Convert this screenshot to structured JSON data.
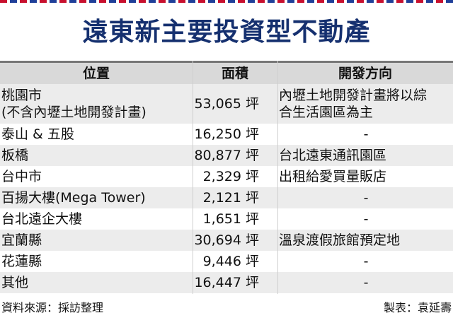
{
  "title": "遠東新主要投資型不動產",
  "table": {
    "headers": [
      "位置",
      "面積",
      "開發方向"
    ],
    "rows": [
      {
        "location": [
          "桃園市",
          "(不含內壢土地開發計畫)"
        ],
        "area": "53,065 坪",
        "direction": [
          "內壢土地開發計畫將以綜",
          "合生活園區為主"
        ]
      },
      {
        "location": [
          "泰山 & 五股"
        ],
        "area": "16,250 坪",
        "direction": [
          "-"
        ]
      },
      {
        "location": [
          "板橋"
        ],
        "area": "80,877 坪",
        "direction": [
          "台北遠東通訊園區"
        ]
      },
      {
        "location": [
          "台中市"
        ],
        "area": "2,329 坪",
        "direction": [
          "出租給愛買量販店"
        ]
      },
      {
        "location": [
          "百揚大樓(Mega Tower)"
        ],
        "area": "2,121 坪",
        "direction": [
          "-"
        ]
      },
      {
        "location": [
          "台北遠企大樓"
        ],
        "area": "1,651 坪",
        "direction": [
          "-"
        ]
      },
      {
        "location": [
          "宜蘭縣"
        ],
        "area": "30,694 坪",
        "direction": [
          "溫泉渡假旅館預定地"
        ]
      },
      {
        "location": [
          "花蓮縣"
        ],
        "area": "9,446 坪",
        "direction": [
          "-"
        ]
      },
      {
        "location": [
          "其他"
        ],
        "area": "16,447 坪",
        "direction": [
          "-"
        ]
      }
    ]
  },
  "footer": {
    "source": "資料來源：採訪整理",
    "credit": "製表：袁延壽"
  }
}
